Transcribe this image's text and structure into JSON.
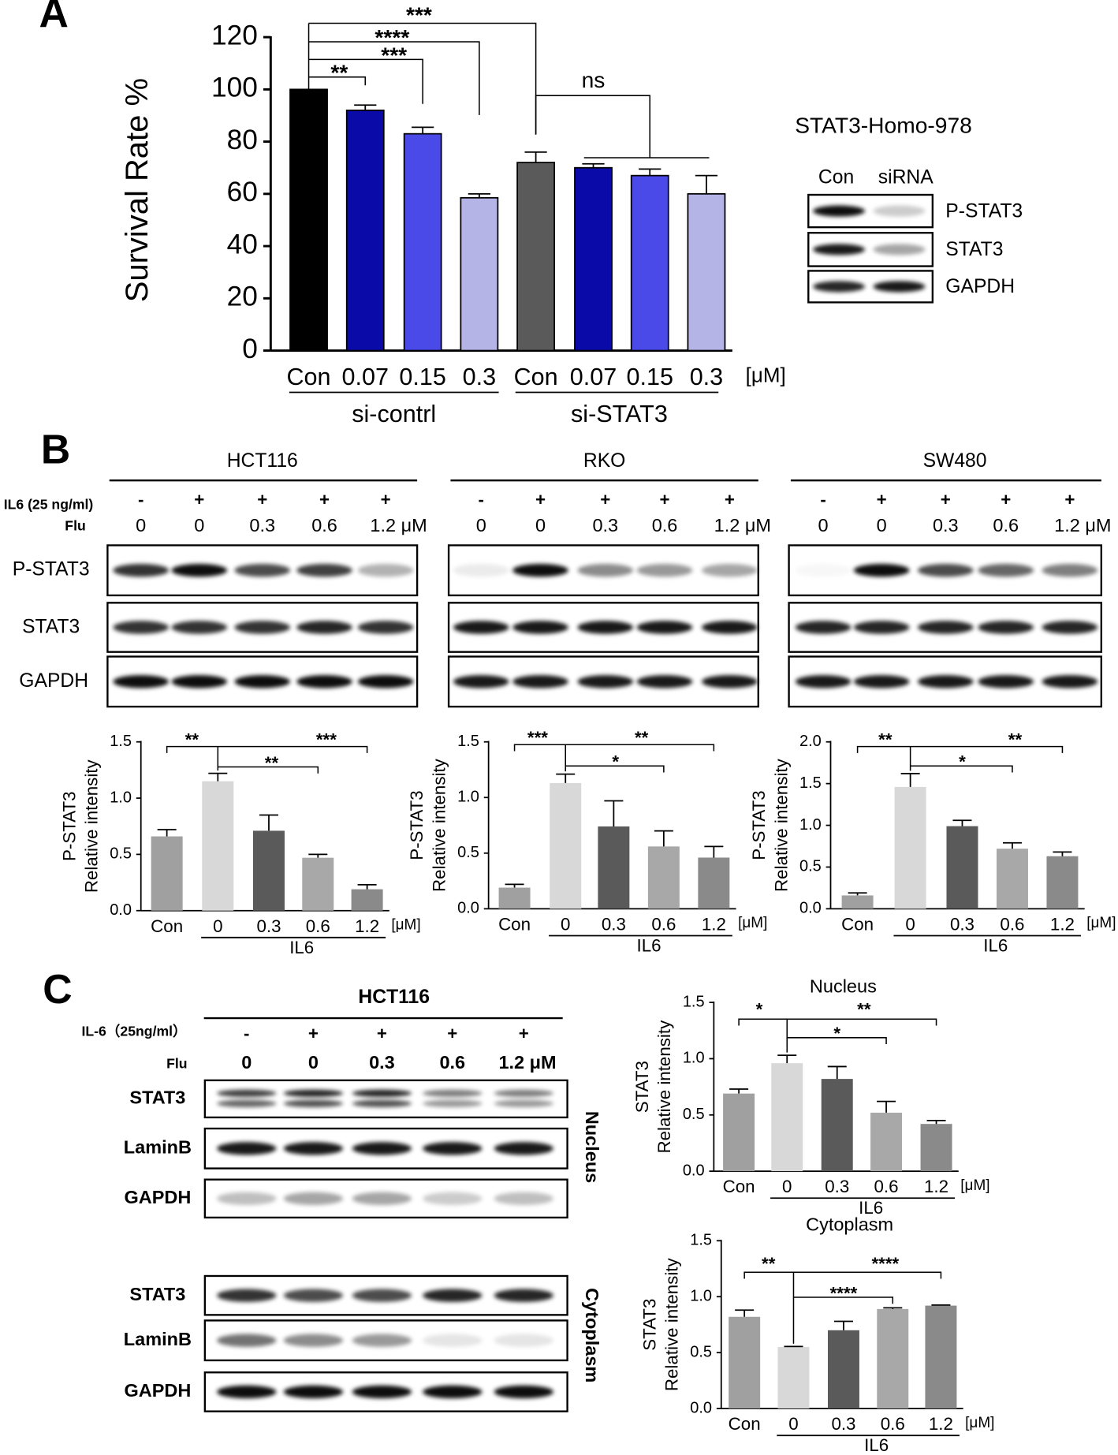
{
  "panel_labels": [
    "A",
    "B",
    "C"
  ],
  "blot_a": {
    "title": "STAT3-Homo-978",
    "lanes": [
      "Con",
      "siRNA"
    ],
    "rows": [
      "P-STAT3",
      "STAT3",
      "GAPDH"
    ]
  },
  "blots_b": [
    {
      "title": "HCT116",
      "treatment_label": "IL6 (25 ng/ml)",
      "drug_label": "Flu",
      "treatment": [
        "-",
        "+",
        "+",
        "+",
        "+"
      ],
      "doses": [
        "0",
        "0",
        "0.3",
        "0.6",
        "1.2 μM"
      ],
      "rows": [
        "P-STAT3",
        "STAT3",
        "GAPDH"
      ]
    },
    {
      "title": "RKO",
      "treatment": [
        "-",
        "+",
        "+",
        "+",
        "+"
      ],
      "doses": [
        "0",
        "0",
        "0.3",
        "0.6",
        "1.2 μM"
      ]
    },
    {
      "title": "SW480",
      "treatment": [
        "-",
        "+",
        "+",
        "+",
        "+"
      ],
      "doses": [
        "0",
        "0",
        "0.3",
        "0.6",
        "1.2 μM"
      ]
    }
  ],
  "blot_c": {
    "title": "HCT116",
    "treatment_label": "IL-6（25ng/ml）",
    "drug_label": "Flu",
    "treatment": [
      "-",
      "+",
      "+",
      "+",
      "+"
    ],
    "doses": [
      "0",
      "0",
      "0.3",
      "0.6",
      "1.2 μM"
    ],
    "fractions": [
      {
        "label": "Nucleus",
        "rows": [
          "STAT3",
          "LaminB",
          "GAPDH"
        ]
      },
      {
        "label": "Cytoplasm",
        "rows": [
          "STAT3",
          "LaminB",
          "GAPDH"
        ]
      }
    ]
  },
  "chart_data": [
    {
      "type": "bar",
      "ylabel": "Survival Rate %",
      "categories": [
        "Con",
        "0.07",
        "0.15",
        "0.3",
        "Con",
        "0.07",
        "0.15",
        "0.3"
      ],
      "unit": "[μM]",
      "groups": [
        "si-contrl",
        "si-STAT3"
      ],
      "values": [
        100,
        92,
        83,
        58.5,
        72,
        70,
        67,
        60
      ],
      "errors": [
        0,
        2,
        2.5,
        1.5,
        4,
        1.5,
        2.5,
        7
      ],
      "colors": [
        "#000000",
        "#0a0aa8",
        "#4a4ae8",
        "#b4b4e6",
        "#5a5a5a",
        "#0a0aa8",
        "#4a4ae8",
        "#b4b4e6"
      ],
      "ylim": [
        0,
        120
      ],
      "yticks": [
        0,
        20,
        40,
        60,
        80,
        100,
        120
      ],
      "annotations": [
        "**",
        "***",
        "****",
        "***",
        "ns"
      ]
    },
    {
      "type": "bar",
      "ylabel": [
        "P-STAT3",
        "Relative intensity"
      ],
      "categories": [
        "Con",
        "0",
        "0.3",
        "0.6",
        "1.2"
      ],
      "unit": "[μM]",
      "groups": [
        "IL6"
      ],
      "values": [
        0.66,
        1.15,
        0.71,
        0.47,
        0.19
      ],
      "errors": [
        0.06,
        0.07,
        0.14,
        0.03,
        0.04
      ],
      "colors": [
        "#a0a0a0",
        "#d8d8d8",
        "#5a5a5a",
        "#a8a8a8",
        "#8a8a8a"
      ],
      "ylim": [
        0,
        1.5
      ],
      "yticks": [
        {
          "value": 0,
          "label": "0.0"
        },
        0.5,
        {
          "value": 1,
          "label": "1.0"
        },
        1.5
      ],
      "annotations": [
        "**",
        "**",
        "***"
      ]
    },
    {
      "type": "bar",
      "ylabel": [
        "P-STAT3",
        "Relative intensity"
      ],
      "categories": [
        "Con",
        "0",
        "0.3",
        "0.6",
        "1.2"
      ],
      "unit": "[μM]",
      "groups": [
        "IL6"
      ],
      "values": [
        0.19,
        1.13,
        0.74,
        0.56,
        0.46
      ],
      "errors": [
        0.03,
        0.08,
        0.23,
        0.14,
        0.1
      ],
      "colors": [
        "#a0a0a0",
        "#d8d8d8",
        "#5a5a5a",
        "#a8a8a8",
        "#8a8a8a"
      ],
      "ylim": [
        0,
        1.5
      ],
      "yticks": [
        {
          "value": 0,
          "label": "0.0"
        },
        0.5,
        {
          "value": 1,
          "label": "1.0"
        },
        1.5
      ],
      "annotations": [
        "***",
        "*",
        "**"
      ]
    },
    {
      "type": "bar",
      "ylabel": [
        "P-STAT3",
        "Relative intensity"
      ],
      "categories": [
        "Con",
        "0",
        "0.3",
        "0.6",
        "1.2"
      ],
      "unit": "[μM]",
      "groups": [
        "IL6"
      ],
      "values": [
        0.16,
        1.46,
        0.99,
        0.72,
        0.63
      ],
      "errors": [
        0.03,
        0.16,
        0.07,
        0.07,
        0.05
      ],
      "colors": [
        "#a0a0a0",
        "#d8d8d8",
        "#5a5a5a",
        "#a8a8a8",
        "#8a8a8a"
      ],
      "ylim": [
        0,
        2
      ],
      "yticks": [
        {
          "value": 0,
          "label": "0.0"
        },
        0.5,
        {
          "value": 1,
          "label": "1.0"
        },
        1.5,
        {
          "value": 2,
          "label": "2.0"
        }
      ],
      "annotations": [
        "**",
        "*",
        "**"
      ]
    },
    {
      "type": "bar",
      "title": "Nucleus",
      "ylabel": [
        "STAT3",
        "Relative intensity"
      ],
      "categories": [
        "Con",
        "0",
        "0.3",
        "0.6",
        "1.2"
      ],
      "unit": "[μM]",
      "groups": [
        "IL6"
      ],
      "values": [
        0.69,
        0.96,
        0.82,
        0.52,
        0.42
      ],
      "errors": [
        0.04,
        0.07,
        0.11,
        0.1,
        0.03
      ],
      "colors": [
        "#a0a0a0",
        "#d8d8d8",
        "#5a5a5a",
        "#a8a8a8",
        "#8a8a8a"
      ],
      "ylim": [
        0,
        1.5
      ],
      "yticks": [
        {
          "value": 0,
          "label": "0.0"
        },
        0.5,
        {
          "value": 1,
          "label": "1.0"
        },
        1.5
      ],
      "annotations": [
        "*",
        "*",
        "**"
      ]
    },
    {
      "type": "bar",
      "title": "Cytoplasm",
      "ylabel": [
        "STAT3",
        "Relative intensity"
      ],
      "categories": [
        "Con",
        "0",
        "0.3",
        "0.6",
        "1.2"
      ],
      "unit": "[μM]",
      "groups": [
        "IL6"
      ],
      "values": [
        0.82,
        0.55,
        0.7,
        0.89,
        0.92
      ],
      "errors": [
        0.06,
        0.005,
        0.08,
        0.01,
        0.005
      ],
      "colors": [
        "#a0a0a0",
        "#d8d8d8",
        "#5a5a5a",
        "#a8a8a8",
        "#8a8a8a"
      ],
      "ylim": [
        0,
        1.5
      ],
      "yticks": [
        {
          "value": 0,
          "label": "0.0"
        },
        0.5,
        {
          "value": 1,
          "label": "1.0"
        },
        1.5
      ],
      "annotations": [
        "**",
        "****",
        "****"
      ]
    }
  ]
}
